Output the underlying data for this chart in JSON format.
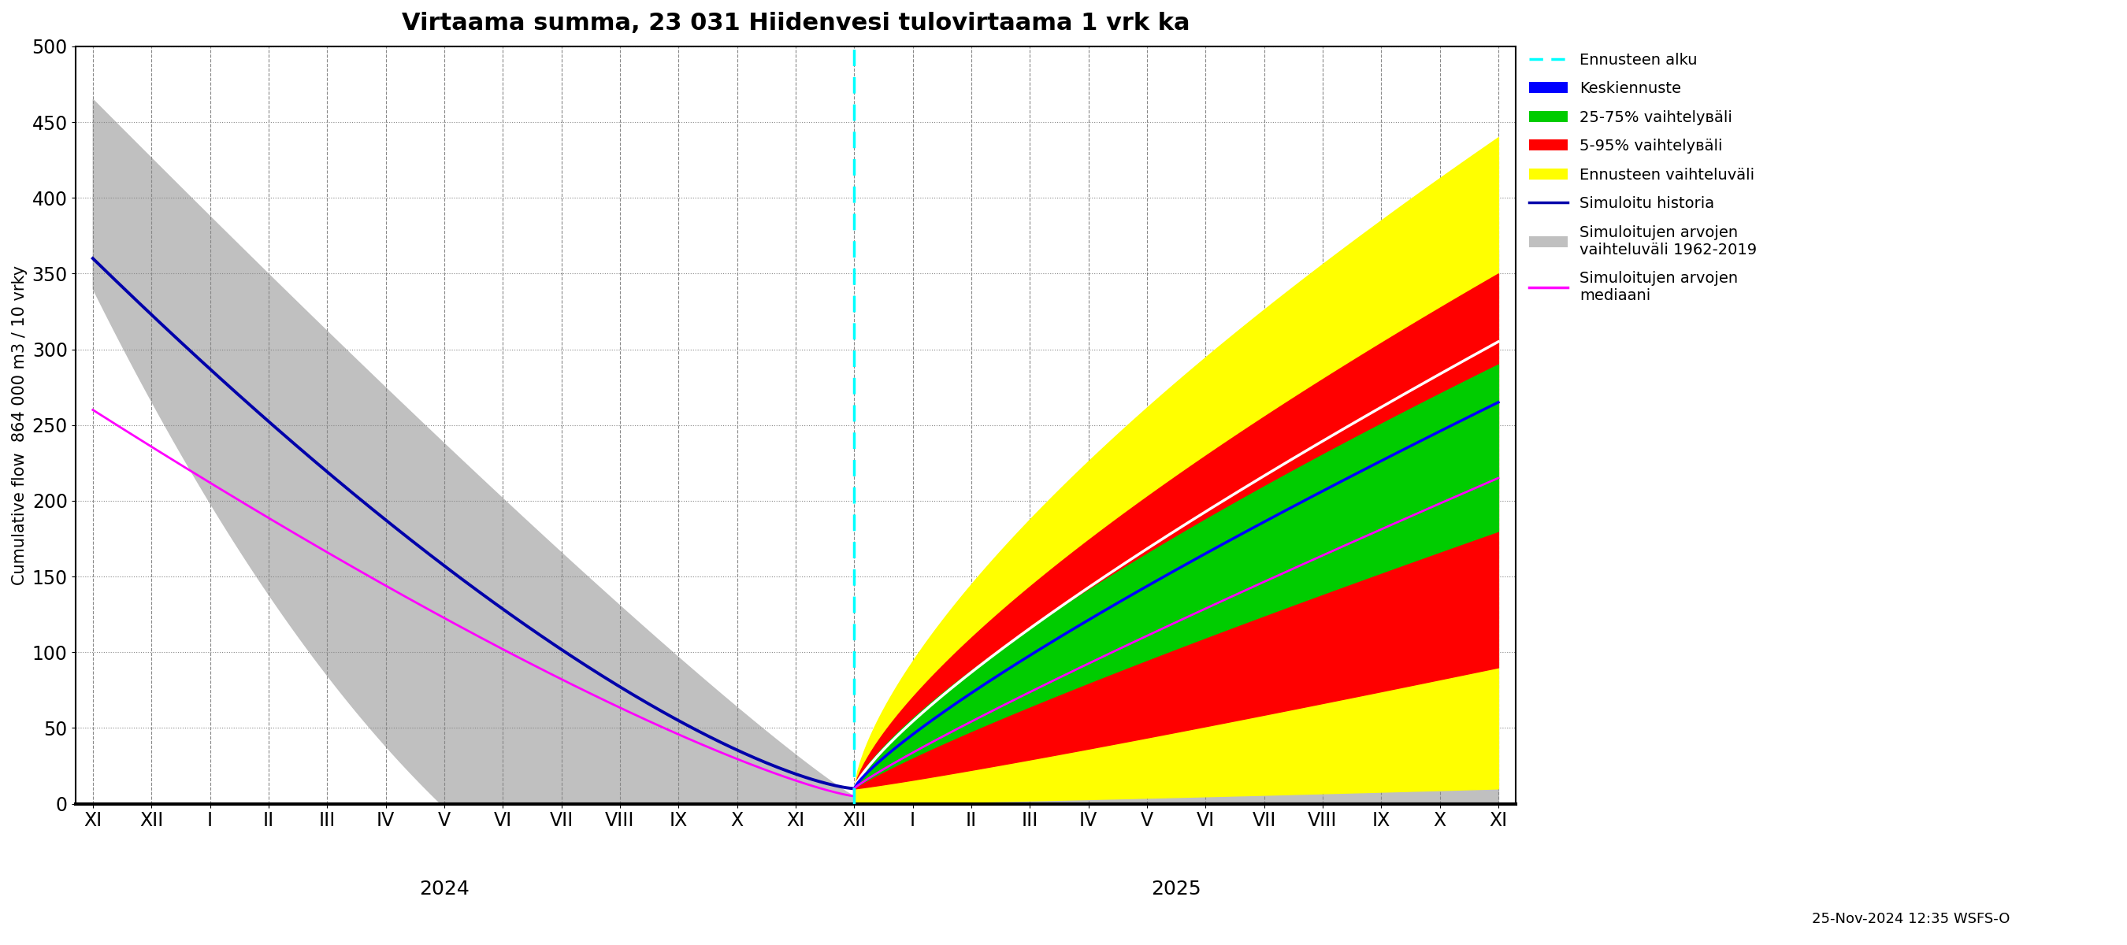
{
  "title": "Virtaama summa, 23 031 Hiidenvesi tulovirtaama 1 vrk ka",
  "ylabel": "Cumulative flow  864 000 m3 / 10 vrky",
  "date_label": "25-Nov-2024 12:35 WSFS-O",
  "ylim": [
    0,
    500
  ],
  "forecast_start_x": 13.0,
  "xtick_positions": [
    0,
    1,
    2,
    3,
    4,
    5,
    6,
    7,
    8,
    9,
    10,
    11,
    12,
    13,
    14,
    15,
    16,
    17,
    18,
    19,
    20,
    21,
    22,
    23,
    24
  ],
  "xtick_labels": [
    "XI",
    "XII",
    "I",
    "II",
    "III",
    "IV",
    "V",
    "VI",
    "VII",
    "VIII",
    "IX",
    "X",
    "XI",
    "XII",
    "I",
    "II",
    "III",
    "IV",
    "V",
    "VI",
    "VII",
    "VIII",
    "IX",
    "X",
    "XI"
  ],
  "year_2024_x": 6.0,
  "year_2025_x": 18.5,
  "colors": {
    "gray_band": "#c0c0c0",
    "yellow_band": "#ffff00",
    "red_band": "#ff0000",
    "green_band": "#00cc00",
    "blue_line": "#0000ff",
    "white_line": "#ffffff",
    "magenta_line": "#ff00ff",
    "dark_blue_hist": "#0000aa",
    "cyan_dashed": "#00ffff",
    "background": "#ffffff"
  },
  "legend_labels": {
    "ennusteen_alku": "Ennusteen alku",
    "keskiennuste": "Keskiennuste",
    "band_25_75": "25-75% vaihtelувäli",
    "band_5_95": "5-95% vaihtelувäli",
    "ennusteen_vaihtelu": "Ennusteen vaihteluväli",
    "simuloitu_historia": "Simuloitu historia",
    "simuloitujen_vaihtelu": "Simuloitujen arvojen\nvaihteluväli 1962-2019",
    "simuloitujen_mediaani": "Simuloitujen arvojen\nmediaani"
  }
}
